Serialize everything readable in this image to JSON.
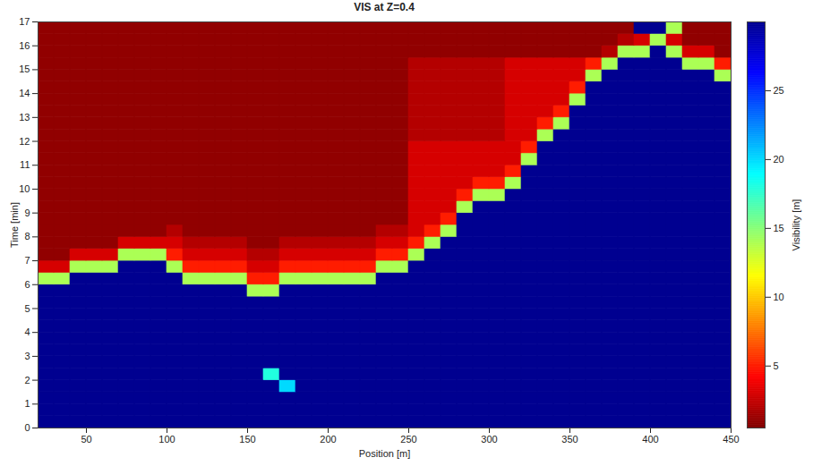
{
  "chart_data": {
    "type": "heatmap",
    "title": "VIS at Z=0.4",
    "x_label": "Position [m]",
    "y_label": "Time [min]",
    "xlim": [
      20,
      450
    ],
    "xticks": [
      50,
      100,
      150,
      200,
      250,
      300,
      350,
      400,
      450
    ],
    "ylim": [
      0,
      17
    ],
    "yticks": [
      0,
      1,
      2,
      3,
      4,
      5,
      6,
      7,
      8,
      9,
      10,
      11,
      12,
      13,
      14,
      15,
      16,
      17
    ],
    "x_edges": [
      20,
      30,
      40,
      50,
      60,
      70,
      80,
      90,
      100,
      110,
      120,
      130,
      140,
      150,
      160,
      170,
      180,
      190,
      200,
      210,
      220,
      230,
      240,
      250,
      260,
      270,
      280,
      290,
      300,
      310,
      320,
      330,
      340,
      350,
      360,
      370,
      380,
      390,
      400,
      410,
      420,
      430,
      440,
      450
    ],
    "y_edges": [
      0,
      0.5,
      1,
      1.5,
      2,
      2.5,
      3,
      3.5,
      4,
      4.5,
      5,
      5.5,
      6,
      6.5,
      7,
      7.5,
      8,
      8.5,
      9,
      9.5,
      10,
      10.5,
      11,
      11.5,
      12,
      12.5,
      13,
      13.5,
      14,
      14.5,
      15,
      15.5,
      16,
      16.5,
      17
    ],
    "values": [
      [
        30,
        30,
        30,
        30,
        30,
        30,
        30,
        30,
        30,
        30,
        30,
        30,
        30,
        30,
        30,
        30,
        30,
        30,
        30,
        30,
        30,
        30,
        30,
        30,
        30,
        30,
        30,
        30,
        30,
        30,
        30,
        30,
        30,
        30,
        30,
        30,
        30,
        30,
        30,
        30,
        30,
        30,
        30
      ],
      [
        30,
        30,
        30,
        30,
        30,
        30,
        30,
        30,
        30,
        30,
        30,
        30,
        30,
        30,
        30,
        30,
        30,
        30,
        30,
        30,
        30,
        30,
        30,
        30,
        30,
        30,
        30,
        30,
        30,
        30,
        30,
        30,
        30,
        30,
        30,
        30,
        30,
        30,
        30,
        30,
        30,
        30,
        30
      ],
      [
        30,
        30,
        30,
        30,
        30,
        30,
        30,
        30,
        30,
        30,
        30,
        30,
        30,
        30,
        30,
        30,
        30,
        30,
        30,
        30,
        30,
        30,
        30,
        30,
        30,
        30,
        30,
        30,
        30,
        30,
        30,
        30,
        30,
        30,
        30,
        30,
        30,
        30,
        30,
        30,
        30,
        30,
        30
      ],
      [
        30,
        30,
        30,
        30,
        30,
        30,
        30,
        30,
        30,
        30,
        30,
        30,
        30,
        30,
        30,
        20,
        30,
        30,
        30,
        30,
        30,
        30,
        30,
        30,
        30,
        30,
        30,
        30,
        30,
        30,
        30,
        30,
        30,
        30,
        30,
        30,
        30,
        30,
        30,
        30,
        30,
        30,
        30
      ],
      [
        30,
        30,
        30,
        30,
        30,
        30,
        30,
        30,
        30,
        30,
        30,
        30,
        30,
        30,
        18,
        30,
        30,
        30,
        30,
        30,
        30,
        30,
        30,
        30,
        30,
        30,
        30,
        30,
        30,
        30,
        30,
        30,
        30,
        30,
        30,
        30,
        30,
        30,
        30,
        30,
        30,
        30,
        30
      ],
      [
        30,
        30,
        30,
        30,
        30,
        30,
        30,
        30,
        30,
        30,
        30,
        30,
        30,
        30,
        30,
        30,
        30,
        30,
        30,
        30,
        30,
        30,
        30,
        30,
        30,
        30,
        30,
        30,
        30,
        30,
        30,
        30,
        30,
        30,
        30,
        30,
        30,
        30,
        30,
        30,
        30,
        30,
        30
      ],
      [
        30,
        30,
        30,
        30,
        30,
        30,
        30,
        30,
        30,
        30,
        30,
        30,
        30,
        30,
        30,
        30,
        30,
        30,
        30,
        30,
        30,
        30,
        30,
        30,
        30,
        30,
        30,
        30,
        30,
        30,
        30,
        30,
        30,
        30,
        30,
        30,
        30,
        30,
        30,
        30,
        30,
        30,
        30
      ],
      [
        30,
        30,
        30,
        30,
        30,
        30,
        30,
        30,
        30,
        30,
        30,
        30,
        30,
        30,
        30,
        30,
        30,
        30,
        30,
        30,
        30,
        30,
        30,
        30,
        30,
        30,
        30,
        30,
        30,
        30,
        30,
        30,
        30,
        30,
        30,
        30,
        30,
        30,
        30,
        30,
        30,
        30,
        30
      ],
      [
        30,
        30,
        30,
        30,
        30,
        30,
        30,
        30,
        30,
        30,
        30,
        30,
        30,
        30,
        30,
        30,
        30,
        30,
        30,
        30,
        30,
        30,
        30,
        30,
        30,
        30,
        30,
        30,
        30,
        30,
        30,
        30,
        30,
        30,
        30,
        30,
        30,
        30,
        30,
        30,
        30,
        30,
        30
      ],
      [
        30,
        30,
        30,
        30,
        30,
        30,
        30,
        30,
        30,
        30,
        30,
        30,
        30,
        30,
        30,
        30,
        30,
        30,
        30,
        30,
        30,
        30,
        30,
        30,
        30,
        30,
        30,
        30,
        30,
        30,
        30,
        30,
        30,
        30,
        30,
        30,
        30,
        30,
        30,
        30,
        30,
        30,
        30
      ],
      [
        30,
        30,
        30,
        30,
        30,
        30,
        30,
        30,
        30,
        30,
        30,
        30,
        30,
        30,
        30,
        30,
        30,
        30,
        30,
        30,
        30,
        30,
        30,
        30,
        30,
        30,
        30,
        30,
        30,
        30,
        30,
        30,
        30,
        30,
        30,
        30,
        30,
        30,
        30,
        30,
        30,
        30,
        30
      ],
      [
        30,
        30,
        30,
        30,
        30,
        30,
        30,
        30,
        30,
        30,
        30,
        30,
        30,
        14,
        14,
        30,
        30,
        30,
        30,
        30,
        30,
        30,
        30,
        30,
        30,
        30,
        30,
        30,
        30,
        30,
        30,
        30,
        30,
        30,
        30,
        30,
        30,
        30,
        30,
        30,
        30,
        30,
        30
      ],
      [
        14,
        14,
        30,
        30,
        30,
        30,
        30,
        30,
        30,
        14,
        14,
        14,
        14,
        5,
        5,
        14,
        14,
        14,
        14,
        14,
        14,
        30,
        30,
        30,
        30,
        30,
        30,
        30,
        30,
        30,
        30,
        30,
        30,
        30,
        30,
        30,
        30,
        30,
        30,
        30,
        30,
        30,
        30
      ],
      [
        3,
        3,
        14,
        14,
        14,
        30,
        30,
        30,
        14,
        5,
        5,
        5,
        5,
        3,
        3,
        5,
        5,
        5,
        5,
        5,
        5,
        14,
        14,
        30,
        30,
        30,
        30,
        30,
        30,
        30,
        30,
        30,
        30,
        30,
        30,
        30,
        30,
        30,
        30,
        30,
        30,
        30,
        30
      ],
      [
        1,
        1,
        3,
        3,
        3,
        14,
        14,
        14,
        5,
        3,
        3,
        3,
        3,
        2,
        2,
        3,
        3,
        3,
        3,
        3,
        3,
        5,
        5,
        14,
        30,
        30,
        30,
        30,
        30,
        30,
        30,
        30,
        30,
        30,
        30,
        30,
        30,
        30,
        30,
        30,
        30,
        30,
        30
      ],
      [
        1,
        1,
        1,
        1,
        1,
        3,
        3,
        3,
        3,
        2,
        2,
        2,
        2,
        1,
        1,
        2,
        2,
        2,
        2,
        2,
        2,
        3,
        3,
        5,
        14,
        30,
        30,
        30,
        30,
        30,
        30,
        30,
        30,
        30,
        30,
        30,
        30,
        30,
        30,
        30,
        30,
        30,
        30
      ],
      [
        1,
        1,
        1,
        1,
        1,
        1,
        1,
        1,
        2,
        1,
        1,
        1,
        1,
        1,
        1,
        1,
        1,
        1,
        1,
        1,
        1,
        2,
        2,
        3,
        5,
        14,
        30,
        30,
        30,
        30,
        30,
        30,
        30,
        30,
        30,
        30,
        30,
        30,
        30,
        30,
        30,
        30,
        30
      ],
      [
        1,
        1,
        1,
        1,
        1,
        1,
        1,
        1,
        1,
        1,
        1,
        1,
        1,
        1,
        1,
        1,
        1,
        1,
        1,
        1,
        1,
        1,
        1,
        3,
        3,
        5,
        30,
        30,
        30,
        30,
        30,
        30,
        30,
        30,
        30,
        30,
        30,
        30,
        30,
        30,
        30,
        30,
        30
      ],
      [
        1,
        1,
        1,
        1,
        1,
        1,
        1,
        1,
        1,
        1,
        1,
        1,
        1,
        1,
        1,
        1,
        1,
        1,
        1,
        1,
        1,
        1,
        1,
        3,
        3,
        3,
        14,
        30,
        30,
        30,
        30,
        30,
        30,
        30,
        30,
        30,
        30,
        30,
        30,
        30,
        30,
        30,
        30
      ],
      [
        1,
        1,
        1,
        1,
        1,
        1,
        1,
        1,
        1,
        1,
        1,
        1,
        1,
        1,
        1,
        1,
        1,
        1,
        1,
        1,
        1,
        1,
        1,
        3,
        3,
        3,
        5,
        14,
        14,
        30,
        30,
        30,
        30,
        30,
        30,
        30,
        30,
        30,
        30,
        30,
        30,
        30,
        30
      ],
      [
        1,
        1,
        1,
        1,
        1,
        1,
        1,
        1,
        1,
        1,
        1,
        1,
        1,
        1,
        1,
        1,
        1,
        1,
        1,
        1,
        1,
        1,
        1,
        3,
        3,
        3,
        3,
        5,
        5,
        14,
        30,
        30,
        30,
        30,
        30,
        30,
        30,
        30,
        30,
        30,
        30,
        30,
        30
      ],
      [
        1,
        1,
        1,
        1,
        1,
        1,
        1,
        1,
        1,
        1,
        1,
        1,
        1,
        1,
        1,
        1,
        1,
        1,
        1,
        1,
        1,
        1,
        1,
        3,
        3,
        3,
        3,
        3,
        3,
        5,
        30,
        30,
        30,
        30,
        30,
        30,
        30,
        30,
        30,
        30,
        30,
        30,
        30
      ],
      [
        1,
        1,
        1,
        1,
        1,
        1,
        1,
        1,
        1,
        1,
        1,
        1,
        1,
        1,
        1,
        1,
        1,
        1,
        1,
        1,
        1,
        1,
        1,
        3,
        3,
        3,
        3,
        3,
        3,
        3,
        14,
        30,
        30,
        30,
        30,
        30,
        30,
        30,
        30,
        30,
        30,
        30,
        30
      ],
      [
        1,
        1,
        1,
        1,
        1,
        1,
        1,
        1,
        1,
        1,
        1,
        1,
        1,
        1,
        1,
        1,
        1,
        1,
        1,
        1,
        1,
        1,
        1,
        3,
        3,
        3,
        3,
        3,
        3,
        3,
        5,
        30,
        30,
        30,
        30,
        30,
        30,
        30,
        30,
        30,
        30,
        30,
        30
      ],
      [
        1,
        1,
        1,
        1,
        1,
        1,
        1,
        1,
        1,
        1,
        1,
        1,
        1,
        1,
        1,
        1,
        1,
        1,
        1,
        1,
        1,
        1,
        1,
        2,
        2,
        2,
        2,
        2,
        2,
        3,
        3,
        14,
        30,
        30,
        30,
        30,
        30,
        30,
        30,
        30,
        30,
        30,
        30
      ],
      [
        1,
        1,
        1,
        1,
        1,
        1,
        1,
        1,
        1,
        1,
        1,
        1,
        1,
        1,
        1,
        1,
        1,
        1,
        1,
        1,
        1,
        1,
        1,
        2,
        2,
        2,
        2,
        2,
        2,
        3,
        3,
        5,
        14,
        30,
        30,
        30,
        30,
        30,
        30,
        30,
        30,
        30,
        30
      ],
      [
        1,
        1,
        1,
        1,
        1,
        1,
        1,
        1,
        1,
        1,
        1,
        1,
        1,
        1,
        1,
        1,
        1,
        1,
        1,
        1,
        1,
        1,
        1,
        2,
        2,
        2,
        2,
        2,
        2,
        3,
        3,
        3,
        5,
        30,
        30,
        30,
        30,
        30,
        30,
        30,
        30,
        30,
        30
      ],
      [
        1,
        1,
        1,
        1,
        1,
        1,
        1,
        1,
        1,
        1,
        1,
        1,
        1,
        1,
        1,
        1,
        1,
        1,
        1,
        1,
        1,
        1,
        1,
        2,
        2,
        2,
        2,
        2,
        2,
        3,
        3,
        3,
        3,
        14,
        30,
        30,
        30,
        30,
        30,
        30,
        30,
        30,
        30
      ],
      [
        1,
        1,
        1,
        1,
        1,
        1,
        1,
        1,
        1,
        1,
        1,
        1,
        1,
        1,
        1,
        1,
        1,
        1,
        1,
        1,
        1,
        1,
        1,
        2,
        2,
        2,
        2,
        2,
        2,
        3,
        3,
        3,
        3,
        5,
        30,
        30,
        30,
        30,
        30,
        30,
        30,
        30,
        30
      ],
      [
        1,
        1,
        1,
        1,
        1,
        1,
        1,
        1,
        1,
        1,
        1,
        1,
        1,
        1,
        1,
        1,
        1,
        1,
        1,
        1,
        1,
        1,
        1,
        2,
        2,
        2,
        2,
        2,
        2,
        3,
        3,
        3,
        3,
        3,
        14,
        30,
        30,
        30,
        30,
        30,
        30,
        30,
        14
      ],
      [
        1,
        1,
        1,
        1,
        1,
        1,
        1,
        1,
        1,
        1,
        1,
        1,
        1,
        1,
        1,
        1,
        1,
        1,
        1,
        1,
        1,
        1,
        1,
        2,
        2,
        2,
        2,
        2,
        2,
        3,
        3,
        3,
        3,
        3,
        5,
        14,
        30,
        30,
        30,
        30,
        14,
        14,
        5
      ],
      [
        1,
        1,
        1,
        1,
        1,
        1,
        1,
        1,
        1,
        1,
        1,
        1,
        1,
        1,
        1,
        1,
        1,
        1,
        1,
        1,
        1,
        1,
        1,
        1,
        1,
        1,
        1,
        1,
        1,
        1,
        1,
        1,
        1,
        1,
        1,
        2,
        14,
        14,
        30,
        14,
        3,
        3,
        1
      ],
      [
        1,
        1,
        1,
        1,
        1,
        1,
        1,
        1,
        1,
        1,
        1,
        1,
        1,
        1,
        1,
        1,
        1,
        1,
        1,
        1,
        1,
        1,
        1,
        1,
        1,
        1,
        1,
        1,
        1,
        1,
        1,
        1,
        1,
        1,
        1,
        1,
        2,
        3,
        14,
        3,
        1,
        1,
        1
      ],
      [
        1,
        1,
        1,
        1,
        1,
        1,
        1,
        1,
        1,
        1,
        1,
        1,
        1,
        1,
        1,
        1,
        1,
        1,
        1,
        1,
        1,
        1,
        1,
        1,
        1,
        1,
        1,
        1,
        1,
        1,
        1,
        1,
        1,
        1,
        1,
        1,
        1,
        30,
        30,
        14,
        1,
        1,
        1
      ]
    ],
    "colorbar": {
      "label": "Visibility [m]",
      "lim": [
        0.5,
        30
      ],
      "ticks": [
        5,
        10,
        15,
        20,
        25
      ]
    }
  }
}
